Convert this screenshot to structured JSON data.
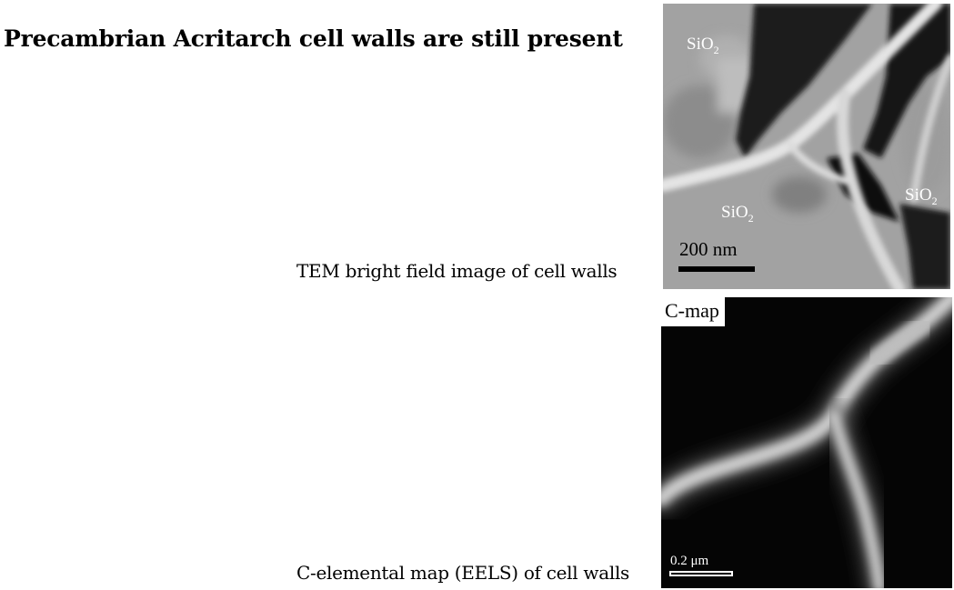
{
  "slide": {
    "title": "Precambrian Acritarch cell walls are still present",
    "caption_tem": "TEM bright field image of cell walls",
    "caption_cmap": "C-elemental map (EELS) of cell walls"
  },
  "tem_image": {
    "label_formula": "SiO",
    "label_subscript": "2",
    "scale_bar": "200 nm"
  },
  "cmap_image": {
    "label": "C-map",
    "scale_bar": "0.2 μm"
  }
}
